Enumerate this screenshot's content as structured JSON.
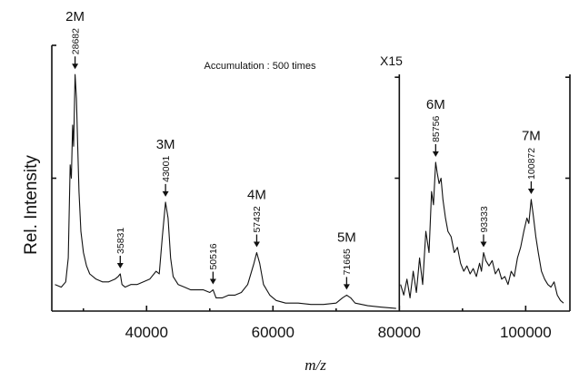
{
  "chart_data": {
    "type": "line",
    "title": "",
    "xlabel": "m/z",
    "ylabel": "Rel. Intensity",
    "xlim": [
      25000,
      107000
    ],
    "ylim": [
      0,
      1
    ],
    "x_ticks": [
      40000,
      60000,
      80000,
      100000
    ],
    "x_tick_labels": [
      "40000",
      "60000",
      "80000",
      "100000"
    ],
    "annotation": "Accumulation : 500 times",
    "scale_break": {
      "x": 80000,
      "label": "X15"
    },
    "grid": false,
    "peaks": [
      {
        "label": "2M",
        "mz": "28682",
        "x": 28682,
        "y": 0.89
      },
      {
        "label": "",
        "mz": "35831",
        "x": 35831,
        "y": 0.14
      },
      {
        "label": "3M",
        "mz": "43001",
        "x": 43001,
        "y": 0.41
      },
      {
        "label": "",
        "mz": "50516",
        "x": 50516,
        "y": 0.08
      },
      {
        "label": "4M",
        "mz": "57432",
        "x": 57432,
        "y": 0.22
      },
      {
        "label": "5M",
        "mz": "71665",
        "x": 71665,
        "y": 0.06
      },
      {
        "label": "6M",
        "mz": "85756",
        "x": 85756,
        "y": 0.56
      },
      {
        "label": "",
        "mz": "93333",
        "x": 93333,
        "y": 0.22
      },
      {
        "label": "7M",
        "mz": "100872",
        "x": 100872,
        "y": 0.42
      }
    ],
    "series": [
      {
        "values": [
          [
            25500,
            0.1
          ],
          [
            26500,
            0.09
          ],
          [
            27200,
            0.11
          ],
          [
            27600,
            0.2
          ],
          [
            27900,
            0.55
          ],
          [
            28100,
            0.5
          ],
          [
            28300,
            0.7
          ],
          [
            28450,
            0.62
          ],
          [
            28682,
            0.89
          ],
          [
            28900,
            0.8
          ],
          [
            29100,
            0.62
          ],
          [
            29300,
            0.45
          ],
          [
            29600,
            0.3
          ],
          [
            30000,
            0.22
          ],
          [
            30500,
            0.17
          ],
          [
            31000,
            0.14
          ],
          [
            32000,
            0.12
          ],
          [
            33000,
            0.11
          ],
          [
            34000,
            0.11
          ],
          [
            35000,
            0.12
          ],
          [
            35500,
            0.13
          ],
          [
            35831,
            0.14
          ],
          [
            36100,
            0.1
          ],
          [
            36600,
            0.09
          ],
          [
            37500,
            0.1
          ],
          [
            38500,
            0.1
          ],
          [
            39500,
            0.11
          ],
          [
            40500,
            0.12
          ],
          [
            41500,
            0.15
          ],
          [
            42000,
            0.14
          ],
          [
            42500,
            0.28
          ],
          [
            43001,
            0.41
          ],
          [
            43400,
            0.35
          ],
          [
            43800,
            0.2
          ],
          [
            44200,
            0.13
          ],
          [
            45000,
            0.1
          ],
          [
            46000,
            0.09
          ],
          [
            47000,
            0.08
          ],
          [
            48000,
            0.08
          ],
          [
            49000,
            0.08
          ],
          [
            50000,
            0.07
          ],
          [
            50516,
            0.08
          ],
          [
            51000,
            0.05
          ],
          [
            52000,
            0.05
          ],
          [
            53000,
            0.06
          ],
          [
            54000,
            0.06
          ],
          [
            55000,
            0.07
          ],
          [
            56000,
            0.1
          ],
          [
            57000,
            0.18
          ],
          [
            57432,
            0.22
          ],
          [
            57900,
            0.18
          ],
          [
            58500,
            0.1
          ],
          [
            59500,
            0.06
          ],
          [
            60500,
            0.04
          ],
          [
            62000,
            0.03
          ],
          [
            64000,
            0.03
          ],
          [
            66000,
            0.025
          ],
          [
            68000,
            0.025
          ],
          [
            70000,
            0.03
          ],
          [
            71000,
            0.05
          ],
          [
            71665,
            0.06
          ],
          [
            72300,
            0.05
          ],
          [
            73000,
            0.03
          ],
          [
            75000,
            0.02
          ],
          [
            77000,
            0.015
          ],
          [
            79500,
            0.01
          ]
        ]
      },
      {
        "values": [
          [
            80200,
            0.1
          ],
          [
            80700,
            0.06
          ],
          [
            81200,
            0.12
          ],
          [
            81700,
            0.05
          ],
          [
            82200,
            0.15
          ],
          [
            82700,
            0.07
          ],
          [
            83200,
            0.2
          ],
          [
            83700,
            0.1
          ],
          [
            84200,
            0.3
          ],
          [
            84700,
            0.22
          ],
          [
            85100,
            0.45
          ],
          [
            85400,
            0.4
          ],
          [
            85756,
            0.56
          ],
          [
            86000,
            0.52
          ],
          [
            86300,
            0.48
          ],
          [
            86600,
            0.5
          ],
          [
            86900,
            0.42
          ],
          [
            87300,
            0.35
          ],
          [
            87700,
            0.3
          ],
          [
            88200,
            0.28
          ],
          [
            88700,
            0.22
          ],
          [
            89200,
            0.24
          ],
          [
            89700,
            0.18
          ],
          [
            90200,
            0.15
          ],
          [
            90700,
            0.17
          ],
          [
            91200,
            0.14
          ],
          [
            91700,
            0.16
          ],
          [
            92200,
            0.13
          ],
          [
            92700,
            0.18
          ],
          [
            93000,
            0.15
          ],
          [
            93333,
            0.22
          ],
          [
            93700,
            0.19
          ],
          [
            94200,
            0.17
          ],
          [
            94700,
            0.19
          ],
          [
            95200,
            0.14
          ],
          [
            95700,
            0.16
          ],
          [
            96200,
            0.12
          ],
          [
            96700,
            0.13
          ],
          [
            97200,
            0.1
          ],
          [
            97700,
            0.15
          ],
          [
            98200,
            0.13
          ],
          [
            98700,
            0.2
          ],
          [
            99200,
            0.24
          ],
          [
            99700,
            0.3
          ],
          [
            100200,
            0.35
          ],
          [
            100500,
            0.33
          ],
          [
            100872,
            0.42
          ],
          [
            101200,
            0.36
          ],
          [
            101600,
            0.28
          ],
          [
            102000,
            0.22
          ],
          [
            102500,
            0.15
          ],
          [
            103000,
            0.12
          ],
          [
            103500,
            0.1
          ],
          [
            104000,
            0.09
          ],
          [
            104500,
            0.11
          ],
          [
            105000,
            0.06
          ],
          [
            105500,
            0.04
          ],
          [
            106000,
            0.03
          ]
        ]
      }
    ]
  }
}
